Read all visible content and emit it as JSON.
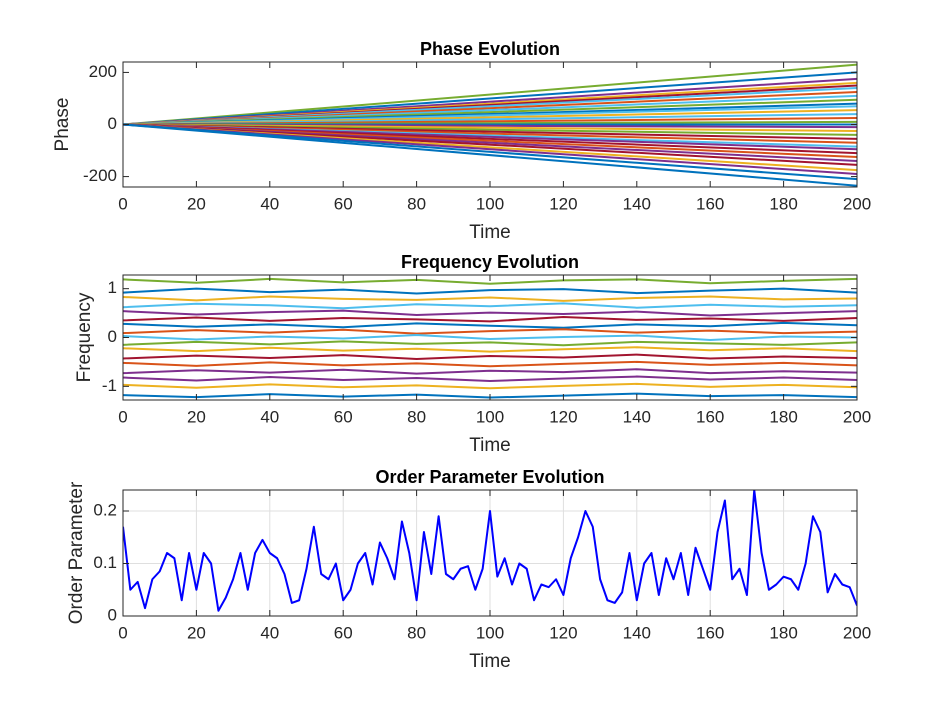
{
  "chart_data": [
    {
      "type": "line",
      "title": "Phase Evolution",
      "xlabel": "Time",
      "ylabel": "Phase",
      "xlim": [
        0,
        200
      ],
      "xticks": [
        0,
        20,
        40,
        60,
        80,
        100,
        120,
        140,
        160,
        180,
        200
      ],
      "ylim": [
        -240,
        240
      ],
      "yticks": [
        -200,
        0,
        200
      ],
      "grid": false,
      "x": [
        0,
        200
      ],
      "series": [
        {
          "color": "#77AC30",
          "values": [
            0,
            230
          ]
        },
        {
          "color": "#0072BD",
          "values": [
            0,
            200
          ]
        },
        {
          "color": "#7E2F8E",
          "values": [
            0,
            175
          ]
        },
        {
          "color": "#EDB120",
          "values": [
            0,
            160
          ]
        },
        {
          "color": "#A2142F",
          "values": [
            0,
            150
          ]
        },
        {
          "color": "#4DBEEE",
          "values": [
            0,
            140
          ]
        },
        {
          "color": "#D95319",
          "values": [
            0,
            125
          ]
        },
        {
          "color": "#4DBEEE",
          "values": [
            0,
            110
          ]
        },
        {
          "color": "#77AC30",
          "values": [
            0,
            95
          ]
        },
        {
          "color": "#0072BD",
          "values": [
            0,
            80
          ]
        },
        {
          "color": "#4DBEEE",
          "values": [
            0,
            70
          ]
        },
        {
          "color": "#EDB120",
          "values": [
            0,
            55
          ]
        },
        {
          "color": "#4DBEEE",
          "values": [
            0,
            40
          ]
        },
        {
          "color": "#D95319",
          "values": [
            0,
            25
          ]
        },
        {
          "color": "#77AC30",
          "values": [
            0,
            10
          ]
        },
        {
          "color": "#0072BD",
          "values": [
            0,
            0
          ]
        },
        {
          "color": "#7E2F8E",
          "values": [
            0,
            -10
          ]
        },
        {
          "color": "#EDB120",
          "values": [
            0,
            -25
          ]
        },
        {
          "color": "#77AC30",
          "values": [
            0,
            -40
          ]
        },
        {
          "color": "#A2142F",
          "values": [
            0,
            -55
          ]
        },
        {
          "color": "#D95319",
          "values": [
            0,
            -70
          ]
        },
        {
          "color": "#4DBEEE",
          "values": [
            0,
            -85
          ]
        },
        {
          "color": "#7E2F8E",
          "values": [
            0,
            -95
          ]
        },
        {
          "color": "#A2142F",
          "values": [
            0,
            -110
          ]
        },
        {
          "color": "#D95319",
          "values": [
            0,
            -125
          ]
        },
        {
          "color": "#7E2F8E",
          "values": [
            0,
            -140
          ]
        },
        {
          "color": "#A2142F",
          "values": [
            0,
            -155
          ]
        },
        {
          "color": "#EDB120",
          "values": [
            0,
            -175
          ]
        },
        {
          "color": "#7E2F8E",
          "values": [
            0,
            -190
          ]
        },
        {
          "color": "#0072BD",
          "values": [
            0,
            -210
          ]
        },
        {
          "color": "#0072BD",
          "values": [
            0,
            -235
          ]
        }
      ]
    },
    {
      "type": "line",
      "title": "Frequency Evolution",
      "xlabel": "Time",
      "ylabel": "Frequency",
      "xlim": [
        0,
        200
      ],
      "xticks": [
        0,
        20,
        40,
        60,
        80,
        100,
        120,
        140,
        160,
        180,
        200
      ],
      "ylim": [
        -1.28,
        1.28
      ],
      "yticks": [
        -1,
        0,
        1
      ],
      "grid": false,
      "x": [
        0,
        20,
        40,
        60,
        80,
        100,
        120,
        140,
        160,
        180,
        200
      ],
      "series": [
        {
          "color": "#77AC30",
          "values": [
            1.19,
            1.12,
            1.2,
            1.13,
            1.18,
            1.1,
            1.17,
            1.19,
            1.11,
            1.16,
            1.2
          ]
        },
        {
          "color": "#0072BD",
          "values": [
            0.92,
            1.0,
            0.93,
            0.98,
            0.9,
            0.97,
            0.99,
            0.91,
            0.96,
            1.0,
            0.92
          ]
        },
        {
          "color": "#EDB120",
          "values": [
            0.83,
            0.76,
            0.84,
            0.79,
            0.77,
            0.82,
            0.75,
            0.81,
            0.84,
            0.78,
            0.8
          ]
        },
        {
          "color": "#4DBEEE",
          "values": [
            0.62,
            0.69,
            0.66,
            0.6,
            0.68,
            0.64,
            0.7,
            0.61,
            0.67,
            0.63,
            0.66
          ]
        },
        {
          "color": "#7E2F8E",
          "values": [
            0.54,
            0.47,
            0.52,
            0.55,
            0.46,
            0.51,
            0.48,
            0.53,
            0.45,
            0.5,
            0.54
          ]
        },
        {
          "color": "#A2142F",
          "values": [
            0.35,
            0.41,
            0.34,
            0.4,
            0.37,
            0.33,
            0.42,
            0.36,
            0.39,
            0.34,
            0.4
          ]
        },
        {
          "color": "#0072BD",
          "values": [
            0.28,
            0.22,
            0.27,
            0.21,
            0.29,
            0.24,
            0.2,
            0.27,
            0.23,
            0.3,
            0.25
          ]
        },
        {
          "color": "#D95319",
          "values": [
            0.09,
            0.15,
            0.1,
            0.16,
            0.08,
            0.13,
            0.17,
            0.1,
            0.14,
            0.09,
            0.12
          ]
        },
        {
          "color": "#4DBEEE",
          "values": [
            0.03,
            -0.04,
            0.02,
            -0.02,
            0.05,
            -0.03,
            0.01,
            0.04,
            -0.05,
            0.02,
            0.0
          ]
        },
        {
          "color": "#77AC30",
          "values": [
            -0.15,
            -0.09,
            -0.14,
            -0.08,
            -0.13,
            -0.1,
            -0.16,
            -0.09,
            -0.12,
            -0.15,
            -0.1
          ]
        },
        {
          "color": "#EDB120",
          "values": [
            -0.22,
            -0.28,
            -0.21,
            -0.27,
            -0.23,
            -0.29,
            -0.24,
            -0.2,
            -0.26,
            -0.22,
            -0.28
          ]
        },
        {
          "color": "#A2142F",
          "values": [
            -0.43,
            -0.37,
            -0.42,
            -0.36,
            -0.44,
            -0.38,
            -0.41,
            -0.35,
            -0.43,
            -0.39,
            -0.42
          ]
        },
        {
          "color": "#D95319",
          "values": [
            -0.52,
            -0.58,
            -0.51,
            -0.57,
            -0.53,
            -0.59,
            -0.54,
            -0.5,
            -0.56,
            -0.52,
            -0.57
          ]
        },
        {
          "color": "#7E2F8E",
          "values": [
            -0.73,
            -0.67,
            -0.72,
            -0.66,
            -0.74,
            -0.68,
            -0.71,
            -0.65,
            -0.73,
            -0.69,
            -0.72
          ]
        },
        {
          "color": "#7E2F8E",
          "values": [
            -0.82,
            -0.88,
            -0.81,
            -0.87,
            -0.83,
            -0.89,
            -0.84,
            -0.8,
            -0.86,
            -0.82,
            -0.87
          ]
        },
        {
          "color": "#EDB120",
          "values": [
            -0.97,
            -1.03,
            -0.96,
            -1.02,
            -0.98,
            -1.04,
            -0.99,
            -0.95,
            -1.01,
            -0.97,
            -1.02
          ]
        },
        {
          "color": "#0072BD",
          "values": [
            -1.18,
            -1.22,
            -1.16,
            -1.21,
            -1.17,
            -1.23,
            -1.19,
            -1.15,
            -1.2,
            -1.18,
            -1.22
          ]
        }
      ]
    },
    {
      "type": "line",
      "title": "Order Parameter Evolution",
      "xlabel": "Time",
      "ylabel": "Order Parameter",
      "xlim": [
        0,
        200
      ],
      "xticks": [
        0,
        20,
        40,
        60,
        80,
        100,
        120,
        140,
        160,
        180,
        200
      ],
      "ylim": [
        0,
        0.24
      ],
      "yticks": [
        0,
        0.1,
        0.2
      ],
      "grid": true,
      "x": [
        0,
        2,
        4,
        6,
        8,
        10,
        12,
        14,
        16,
        18,
        20,
        22,
        24,
        26,
        28,
        30,
        32,
        34,
        36,
        38,
        40,
        42,
        44,
        46,
        48,
        50,
        52,
        54,
        56,
        58,
        60,
        62,
        64,
        66,
        68,
        70,
        72,
        74,
        76,
        78,
        80,
        82,
        84,
        86,
        88,
        90,
        92,
        94,
        96,
        98,
        100,
        102,
        104,
        106,
        108,
        110,
        112,
        114,
        116,
        118,
        120,
        122,
        124,
        126,
        128,
        130,
        132,
        134,
        136,
        138,
        140,
        142,
        144,
        146,
        148,
        150,
        152,
        154,
        156,
        158,
        160,
        162,
        164,
        166,
        168,
        170,
        172,
        174,
        176,
        178,
        180,
        182,
        184,
        186,
        188,
        190,
        192,
        194,
        196,
        198,
        200
      ],
      "series": [
        {
          "color": "#0000FF",
          "values": [
            0.17,
            0.05,
            0.065,
            0.015,
            0.07,
            0.085,
            0.12,
            0.11,
            0.03,
            0.12,
            0.05,
            0.12,
            0.1,
            0.01,
            0.035,
            0.07,
            0.12,
            0.05,
            0.12,
            0.145,
            0.12,
            0.11,
            0.08,
            0.025,
            0.03,
            0.09,
            0.17,
            0.08,
            0.07,
            0.1,
            0.03,
            0.05,
            0.1,
            0.12,
            0.06,
            0.14,
            0.11,
            0.07,
            0.18,
            0.12,
            0.03,
            0.16,
            0.08,
            0.19,
            0.08,
            0.07,
            0.09,
            0.095,
            0.05,
            0.09,
            0.2,
            0.075,
            0.11,
            0.06,
            0.1,
            0.09,
            0.03,
            0.06,
            0.055,
            0.07,
            0.04,
            0.11,
            0.15,
            0.2,
            0.17,
            0.07,
            0.03,
            0.025,
            0.045,
            0.12,
            0.03,
            0.1,
            0.12,
            0.04,
            0.11,
            0.07,
            0.12,
            0.04,
            0.13,
            0.09,
            0.05,
            0.16,
            0.22,
            0.07,
            0.09,
            0.04,
            0.24,
            0.12,
            0.05,
            0.06,
            0.075,
            0.07,
            0.05,
            0.1,
            0.19,
            0.16,
            0.045,
            0.08,
            0.06,
            0.055,
            0.02
          ]
        }
      ]
    }
  ]
}
